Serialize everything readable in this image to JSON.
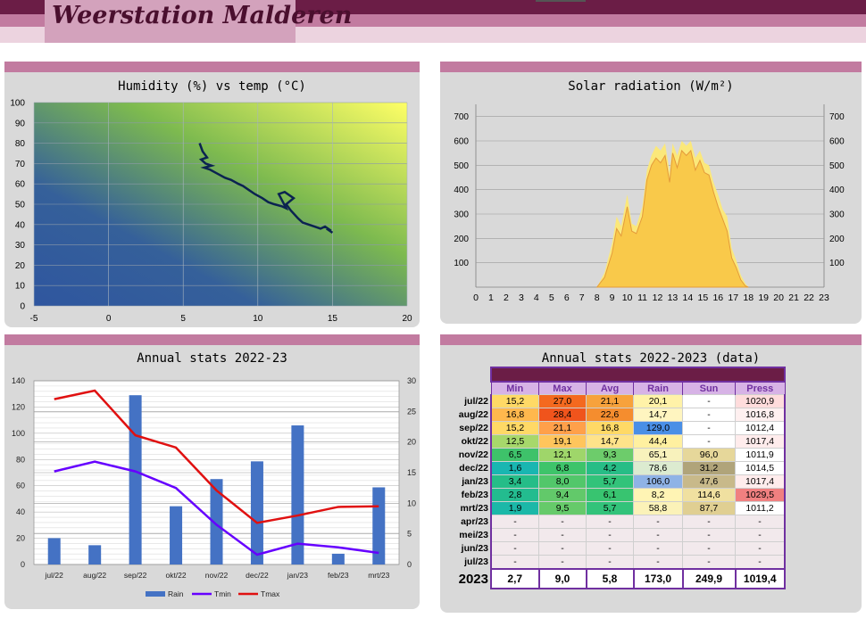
{
  "site_title": "Weerstation Malderen",
  "charts": {
    "humidity": {
      "title": "Humidity (%) vs temp (°C)"
    },
    "solar": {
      "title": "Solar radiation (W/m²)"
    },
    "annual": {
      "title": "Annual stats 2022-23"
    },
    "table": {
      "title": "Annual stats 2022-2023 (data)"
    }
  },
  "chart_data": [
    {
      "type": "line",
      "title": "Humidity (%) vs temp (°C)",
      "xlim": [
        -5,
        20
      ],
      "ylim": [
        0,
        100
      ],
      "xticks": [
        "-5",
        "0",
        "5",
        "10",
        "15",
        "20"
      ],
      "yticks": [
        "0",
        "10",
        "20",
        "30",
        "40",
        "50",
        "60",
        "70",
        "80",
        "90",
        "100"
      ],
      "grid": true,
      "series": [
        {
          "x": [
            6.1,
            6.3,
            6.6,
            6.2,
            6.5,
            6.9,
            6.4,
            6.8,
            7.3,
            7.8,
            8.2,
            8.7,
            9.0,
            9.4,
            9.8,
            10.3,
            10.7,
            11.1,
            11.6,
            11.9,
            11.4,
            11.8,
            12.4,
            11.9,
            12.2,
            12.7,
            13.0,
            13.4,
            13.8,
            14.2,
            14.5,
            14.9,
            14.6,
            15.0
          ],
          "y": [
            80,
            76,
            73,
            72,
            70,
            69,
            68,
            67,
            65,
            63,
            62,
            60,
            59,
            57,
            55,
            53,
            51,
            50,
            49,
            48,
            55,
            56,
            53,
            50,
            47,
            43,
            41,
            40,
            39,
            38,
            39,
            37,
            38,
            36
          ]
        }
      ]
    },
    {
      "type": "area",
      "title": "Solar radiation (W/m²)",
      "xlim": [
        0,
        23
      ],
      "ylim": [
        0,
        750
      ],
      "xticks": [
        "0",
        "1",
        "2",
        "3",
        "4",
        "5",
        "6",
        "7",
        "8",
        "9",
        "10",
        "11",
        "12",
        "13",
        "14",
        "15",
        "16",
        "17",
        "18",
        "19",
        "20",
        "21",
        "22",
        "23"
      ],
      "yticks": [
        "100",
        "200",
        "300",
        "400",
        "500",
        "600",
        "700"
      ],
      "series": [
        {
          "x": [
            8,
            8.5,
            9,
            9.3,
            9.6,
            10,
            10.3,
            10.6,
            11,
            11.3,
            11.6,
            11.9,
            12.2,
            12.5,
            12.8,
            13,
            13.3,
            13.6,
            13.9,
            14.2,
            14.5,
            14.8,
            15.1,
            15.4,
            15.7,
            16,
            16.3,
            16.6,
            16.9,
            17.2,
            17.5,
            17.8,
            18
          ],
          "y": [
            0,
            60,
            180,
            290,
            250,
            380,
            260,
            250,
            330,
            480,
            540,
            580,
            560,
            590,
            470,
            590,
            540,
            600,
            580,
            600,
            530,
            560,
            510,
            500,
            430,
            380,
            320,
            290,
            160,
            110,
            50,
            15,
            0
          ]
        },
        {
          "x": [
            8,
            8.5,
            9,
            9.3,
            9.6,
            10,
            10.3,
            10.6,
            11,
            11.3,
            11.6,
            11.9,
            12.2,
            12.5,
            12.8,
            13,
            13.3,
            13.6,
            13.9,
            14.2,
            14.5,
            14.8,
            15.1,
            15.4,
            15.7,
            16,
            16.3,
            16.6,
            16.9,
            17.2,
            17.5,
            17.8,
            18
          ],
          "y": [
            0,
            40,
            140,
            240,
            210,
            330,
            230,
            220,
            290,
            440,
            500,
            530,
            510,
            540,
            430,
            550,
            490,
            560,
            540,
            560,
            480,
            520,
            470,
            460,
            390,
            330,
            280,
            230,
            120,
            80,
            30,
            5,
            0
          ]
        }
      ]
    },
    {
      "type": "bar",
      "title": "Annual stats 2022-23",
      "categories": [
        "jul/22",
        "aug/22",
        "sep/22",
        "okt/22",
        "nov/22",
        "dec/22",
        "jan/23",
        "feb/23",
        "mrt/23"
      ],
      "ylim": [
        0,
        140
      ],
      "y2lim": [
        0,
        30
      ],
      "yticks": [
        "0",
        "20",
        "40",
        "60",
        "80",
        "100",
        "120",
        "140"
      ],
      "y2ticks": [
        "0",
        "5",
        "10",
        "15",
        "20",
        "25",
        "30"
      ],
      "legend": "bottom",
      "series": [
        {
          "name": "Rain",
          "axis": "left",
          "type": "bar",
          "values": [
            20.1,
            14.7,
            129.0,
            44.4,
            65.1,
            78.6,
            106.0,
            8.2,
            58.8
          ],
          "color": "#4472c4"
        },
        {
          "name": "Tmin",
          "axis": "right",
          "type": "line",
          "values": [
            15.2,
            16.8,
            15.2,
            12.5,
            6.5,
            1.6,
            3.4,
            2.8,
            1.9
          ],
          "color": "#6600ff"
        },
        {
          "name": "Tmax",
          "axis": "right",
          "type": "line",
          "values": [
            27.0,
            28.4,
            21.1,
            19.1,
            12.1,
            6.8,
            8.0,
            9.4,
            9.5
          ],
          "color": "#e01010"
        }
      ]
    },
    {
      "type": "table",
      "title": "Annual stats 2022-2023 (data)",
      "columns": [
        "Min",
        "Max",
        "Avg",
        "Rain",
        "Sun",
        "Press"
      ],
      "rows": [
        {
          "label": "jul/22",
          "cells": [
            "15,2",
            "27,0",
            "21,1",
            "20,1",
            "-",
            "1020,9"
          ],
          "colors": [
            "#ffd966",
            "#f4691f",
            "#f7a23c",
            "#fff2a8",
            "#ffffff",
            "#ffdcdc"
          ]
        },
        {
          "label": "aug/22",
          "cells": [
            "16,8",
            "28,4",
            "22,6",
            "14,7",
            "-",
            "1016,8"
          ],
          "colors": [
            "#ffb84d",
            "#f0541c",
            "#f58d2e",
            "#fff5c0",
            "#ffffff",
            "#fff0f0"
          ]
        },
        {
          "label": "sep/22",
          "cells": [
            "15,2",
            "21,1",
            "16,8",
            "129,0",
            "-",
            "1012,4"
          ],
          "colors": [
            "#ffd966",
            "#ffa04a",
            "#ffd966",
            "#4a8fe6",
            "#ffffff",
            "#ffffff"
          ]
        },
        {
          "label": "okt/22",
          "cells": [
            "12,5",
            "19,1",
            "14,7",
            "44,4",
            "-",
            "1017,4"
          ],
          "colors": [
            "#a7d86b",
            "#ffc55c",
            "#ffe38a",
            "#fff0a0",
            "#ffffff",
            "#ffecec"
          ]
        },
        {
          "label": "nov/22",
          "cells": [
            "6,5",
            "12,1",
            "9,3",
            "65,1",
            "96,0",
            "1011,9"
          ],
          "colors": [
            "#3ec26a",
            "#9fd66a",
            "#6dcc6b",
            "#f8f2bc",
            "#e6d79a",
            "#ffffff"
          ]
        },
        {
          "label": "dec/22",
          "cells": [
            "1,6",
            "6,8",
            "4,2",
            "78,6",
            "31,2",
            "1014,5"
          ],
          "colors": [
            "#19b6b1",
            "#3ec46a",
            "#27bd86",
            "#dcebd0",
            "#b0a47a",
            "#ffffff"
          ]
        },
        {
          "label": "jan/23",
          "cells": [
            "3,4",
            "8,0",
            "5,7",
            "106,0",
            "47,6",
            "1017,4"
          ],
          "colors": [
            "#25bd88",
            "#52c76a",
            "#32c37a",
            "#8fb3e6",
            "#c8b98a",
            "#ffecec"
          ]
        },
        {
          "label": "feb/23",
          "cells": [
            "2,8",
            "9,4",
            "6,1",
            "8,2",
            "114,6",
            "1029,5"
          ],
          "colors": [
            "#23bc8f",
            "#62c96a",
            "#38c470",
            "#fff4b4",
            "#f0e0a0",
            "#f08080"
          ]
        },
        {
          "label": "mrt/23",
          "cells": [
            "1,9",
            "9,5",
            "5,7",
            "58,8",
            "87,7",
            "1011,2"
          ],
          "colors": [
            "#1bb8a8",
            "#66ca6a",
            "#32c37a",
            "#fbf2b8",
            "#e0cf92",
            "#ffffff"
          ]
        },
        {
          "label": "apr/23",
          "cells": [
            "-",
            "-",
            "-",
            "-",
            "-",
            "-"
          ],
          "colors": [
            "#f2e9ec",
            "#f2e9ec",
            "#f2e9ec",
            "#f2e9ec",
            "#f2e9ec",
            "#f2e9ec"
          ]
        },
        {
          "label": "mei/23",
          "cells": [
            "-",
            "-",
            "-",
            "-",
            "-",
            "-"
          ],
          "colors": [
            "#f2e9ec",
            "#f2e9ec",
            "#f2e9ec",
            "#f2e9ec",
            "#f2e9ec",
            "#f2e9ec"
          ]
        },
        {
          "label": "jun/23",
          "cells": [
            "-",
            "-",
            "-",
            "-",
            "-",
            "-"
          ],
          "colors": [
            "#f2e9ec",
            "#f2e9ec",
            "#f2e9ec",
            "#f2e9ec",
            "#f2e9ec",
            "#f2e9ec"
          ]
        },
        {
          "label": "jul/23",
          "cells": [
            "-",
            "-",
            "-",
            "-",
            "-",
            "-"
          ],
          "colors": [
            "#f2e9ec",
            "#f2e9ec",
            "#f2e9ec",
            "#f2e9ec",
            "#f2e9ec",
            "#f2e9ec"
          ]
        }
      ],
      "total": {
        "label": "2023",
        "cells": [
          "2,7",
          "9,0",
          "5,8",
          "173,0",
          "249,9",
          "1019,4"
        ]
      }
    }
  ]
}
